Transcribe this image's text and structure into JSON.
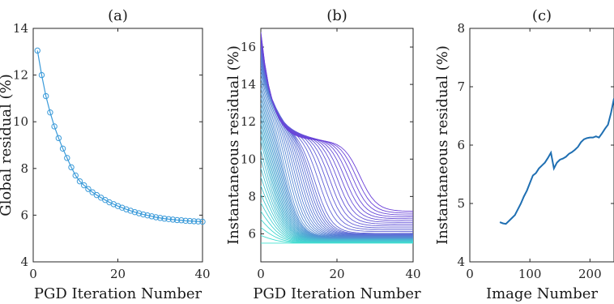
{
  "chart_data": [
    {
      "type": "line",
      "panel_label": "(a)",
      "xlabel": "PGD Iteration Number",
      "ylabel": "Global residual (%)",
      "xlim": [
        0,
        40
      ],
      "ylim": [
        4,
        14
      ],
      "xticks": [
        0,
        20,
        40
      ],
      "yticks": [
        4,
        6,
        8,
        10,
        12,
        14
      ],
      "grid": false,
      "color": "#3a9ad9",
      "marker": "circle-open",
      "series": [
        {
          "x": [
            1,
            2,
            3,
            4,
            5,
            6,
            7,
            8,
            9,
            10,
            11,
            12,
            13,
            14,
            15,
            16,
            17,
            18,
            19,
            20,
            21,
            22,
            23,
            24,
            25,
            26,
            27,
            28,
            29,
            30,
            31,
            32,
            33,
            34,
            35,
            36,
            37,
            38,
            39,
            40
          ],
          "values": [
            13.05,
            12.0,
            11.1,
            10.4,
            9.8,
            9.3,
            8.85,
            8.45,
            8.05,
            7.7,
            7.45,
            7.28,
            7.12,
            6.98,
            6.86,
            6.75,
            6.65,
            6.55,
            6.47,
            6.39,
            6.32,
            6.25,
            6.19,
            6.13,
            6.08,
            6.03,
            5.99,
            5.95,
            5.91,
            5.88,
            5.85,
            5.83,
            5.81,
            5.79,
            5.78,
            5.76,
            5.75,
            5.74,
            5.73,
            5.72
          ]
        }
      ]
    },
    {
      "type": "line",
      "panel_label": "(b)",
      "xlabel": "PGD Iteration Number",
      "ylabel": "Instantaneous residual (%)",
      "xlim": [
        0,
        40
      ],
      "ylim": [
        4.5,
        17
      ],
      "xticks": [
        0,
        20,
        40
      ],
      "yticks": [
        6,
        8,
        10,
        12,
        14,
        16
      ],
      "grid": false,
      "series_count": 50,
      "color_map": [
        "#40e0d0",
        "#6a3fd8"
      ],
      "x_samples": [
        0,
        1,
        2,
        3,
        4,
        5,
        6,
        7,
        8,
        9,
        10,
        11,
        12,
        13,
        14,
        15,
        16,
        17,
        18,
        19,
        20,
        21,
        22,
        23,
        24,
        25,
        26,
        27,
        28,
        29,
        30,
        31,
        32,
        33,
        34,
        35,
        36,
        37,
        38,
        39,
        40
      ],
      "anchor_series": [
        {
          "v0": 5.5,
          "plateau": 5.5,
          "drop_at": 2,
          "final": 5.5
        },
        {
          "v0": 12.5,
          "plateau": 11.0,
          "drop_at": 3,
          "final": 5.7
        },
        {
          "v0": 15.0,
          "plateau": 13.0,
          "drop_at": 6,
          "final": 5.8
        },
        {
          "v0": 16.0,
          "plateau": 11.5,
          "drop_at": 14,
          "final": 6.0
        },
        {
          "v0": 16.8,
          "plateau": 11.0,
          "drop_at": 26,
          "final": 7.2
        }
      ]
    },
    {
      "type": "line",
      "panel_label": "(c)",
      "xlabel": "Image Number",
      "ylabel": "Instantaneous residual (%)",
      "xlim": [
        0,
        240
      ],
      "ylim": [
        4,
        8
      ],
      "xticks": [
        0,
        100,
        200
      ],
      "yticks": [
        4,
        5,
        6,
        7,
        8
      ],
      "grid": false,
      "color": "#1f6fb2",
      "series": [
        {
          "x": [
            50,
            55,
            60,
            65,
            70,
            75,
            80,
            85,
            90,
            95,
            100,
            105,
            110,
            115,
            120,
            125,
            130,
            135,
            140,
            145,
            150,
            155,
            160,
            165,
            170,
            175,
            180,
            185,
            190,
            195,
            200,
            205,
            210,
            215,
            220,
            225,
            230,
            235,
            240
          ],
          "values": [
            4.68,
            4.66,
            4.65,
            4.7,
            4.75,
            4.8,
            4.9,
            5.0,
            5.12,
            5.22,
            5.35,
            5.48,
            5.52,
            5.6,
            5.65,
            5.7,
            5.78,
            5.87,
            5.6,
            5.7,
            5.75,
            5.77,
            5.8,
            5.85,
            5.88,
            5.92,
            5.97,
            6.05,
            6.1,
            6.12,
            6.13,
            6.13,
            6.15,
            6.13,
            6.2,
            6.28,
            6.35,
            6.55,
            6.8
          ]
        }
      ]
    }
  ]
}
